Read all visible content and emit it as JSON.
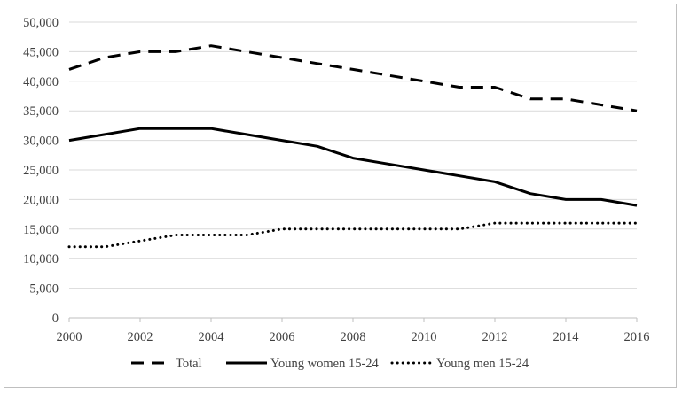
{
  "chart_data": {
    "type": "line",
    "x": [
      2000,
      2001,
      2002,
      2003,
      2004,
      2005,
      2006,
      2007,
      2008,
      2009,
      2010,
      2011,
      2012,
      2013,
      2014,
      2015,
      2016
    ],
    "x_tick_labels": [
      "2000",
      "2002",
      "2004",
      "2006",
      "2008",
      "2010",
      "2012",
      "2014",
      "2016"
    ],
    "y_tick_labels": [
      "0",
      "5,000",
      "10,000",
      "15,000",
      "20,000",
      "25,000",
      "30,000",
      "35,000",
      "40,000",
      "45,000",
      "50,000"
    ],
    "ylim": [
      0,
      50000
    ],
    "xlim": [
      2000,
      2016
    ],
    "grid": "horizontal",
    "legend_position": "bottom",
    "series": [
      {
        "name": "Total",
        "style": "dashed",
        "color": "#000000",
        "values": [
          42000,
          44000,
          45000,
          45000,
          46000,
          45000,
          44000,
          43000,
          42000,
          41000,
          40000,
          39000,
          39000,
          37000,
          37000,
          36000,
          35000
        ]
      },
      {
        "name": "Young women 15-24",
        "style": "solid",
        "color": "#000000",
        "values": [
          30000,
          31000,
          32000,
          32000,
          32000,
          31000,
          30000,
          29000,
          27000,
          26000,
          25000,
          24000,
          23000,
          21000,
          20000,
          20000,
          19000
        ]
      },
      {
        "name": "Young men 15-24",
        "style": "dotted",
        "color": "#000000",
        "values": [
          12000,
          12000,
          13000,
          14000,
          14000,
          14000,
          15000,
          15000,
          15000,
          15000,
          15000,
          15000,
          16000,
          16000,
          16000,
          16000,
          16000
        ]
      }
    ]
  }
}
